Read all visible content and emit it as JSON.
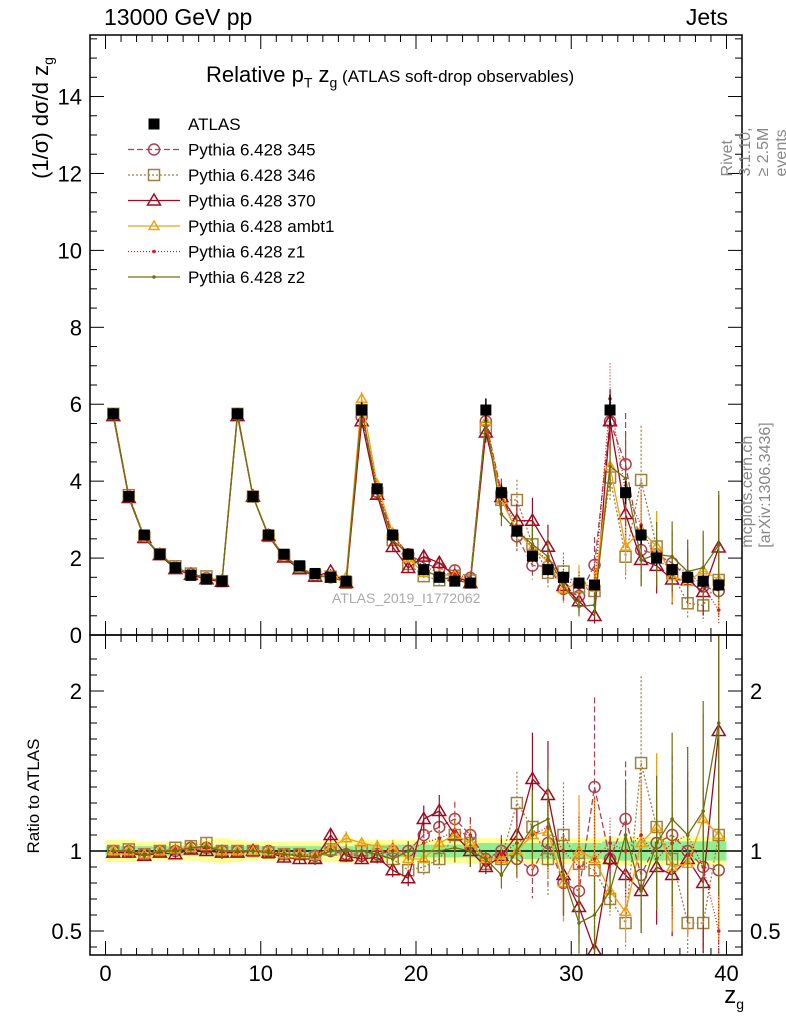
{
  "header": {
    "energy_label": "13000 GeV pp",
    "process_label": "Jets"
  },
  "title": {
    "prefix": "Relative p",
    "sub": "T",
    "mid": " z",
    "sub2": "g",
    "suffix": " (ATLAS soft-drop observables)"
  },
  "axes": {
    "ylabel_main": "(1/σ) dσ/d z",
    "ylabel_main_sub": "g",
    "ylabel_ratio": "Ratio to ATLAS",
    "xlabel": "z",
    "xlabel_sub": "g"
  },
  "side_labels": {
    "rivet": "Rivet 3.1.10, ≥ 2.5M events",
    "mcplots": "mcplots.cern.ch [arXiv:1306.3436]"
  },
  "analysis_label": "ATLAS_2019_I1772062",
  "colors": {
    "ATLAS": "#000000",
    "p345": "#b04050",
    "p346": "#a08040",
    "p370": "#9e0b20",
    "ambt1": "#f0a010",
    "z1": "#d02020",
    "z2": "#707010",
    "band_inner": "#90ee90",
    "band_outer": "#ffff99"
  },
  "chart_data": {
    "type": "scatter",
    "x_bins": [
      0.5,
      1.5,
      2.5,
      3.5,
      4.5,
      5.5,
      6.5,
      7.5,
      8.5,
      9.5,
      10.5,
      11.5,
      12.5,
      13.5,
      14.5,
      15.5,
      16.5,
      17.5,
      18.5,
      19.5,
      20.5,
      21.5,
      22.5,
      23.5,
      24.5,
      25.5,
      26.5,
      27.5,
      28.5,
      29.5,
      30.5,
      31.5,
      32.5,
      33.5,
      34.5,
      35.5,
      36.5,
      37.5,
      38.5,
      39.5
    ],
    "xlim": [
      -1,
      41
    ],
    "main": {
      "ylim": [
        0,
        15.6
      ],
      "yticks": [
        0,
        2,
        4,
        6,
        8,
        10,
        12,
        14
      ]
    },
    "ratio": {
      "ylim": [
        0.35,
        2.35
      ],
      "yticks": [
        0.5,
        1,
        2
      ],
      "ytick_labels": [
        "0.5",
        "1",
        "2"
      ]
    },
    "xticks": [
      0,
      10,
      20,
      30,
      40
    ],
    "legend": [
      "ATLAS",
      "Pythia 6.428 345",
      "Pythia 6.428 346",
      "Pythia 6.428 370",
      "Pythia 6.428 ambt1",
      "Pythia 6.428 z1",
      "Pythia 6.428 z2"
    ],
    "atlas": [
      5.75,
      3.6,
      2.6,
      2.1,
      1.75,
      1.55,
      1.45,
      1.4,
      5.75,
      3.6,
      2.6,
      2.1,
      1.8,
      1.6,
      1.5,
      1.4,
      5.85,
      3.8,
      2.6,
      2.1,
      1.7,
      1.5,
      1.4,
      1.35,
      5.85,
      3.7,
      2.7,
      2.05,
      1.7,
      1.5,
      1.35,
      1.3,
      5.85,
      3.7,
      2.6,
      2.0,
      1.7,
      1.5,
      1.4,
      1.3
    ],
    "atlas_err": [
      0.15,
      0.1,
      0.08,
      0.06,
      0.05,
      0.05,
      0.05,
      0.05,
      0.15,
      0.1,
      0.08,
      0.06,
      0.06,
      0.05,
      0.05,
      0.05,
      0.2,
      0.15,
      0.1,
      0.08,
      0.08,
      0.07,
      0.07,
      0.07,
      0.3,
      0.2,
      0.15,
      0.12,
      0.1,
      0.1,
      0.1,
      0.1,
      0.4,
      0.3,
      0.25,
      0.2,
      0.15,
      0.15,
      0.15,
      0.15
    ],
    "band_inner_frac": [
      0.03,
      0.03,
      0.03,
      0.03,
      0.03,
      0.03,
      0.03,
      0.03,
      0.03,
      0.03,
      0.03,
      0.03,
      0.03,
      0.03,
      0.03,
      0.03,
      0.04,
      0.04,
      0.04,
      0.04,
      0.04,
      0.04,
      0.04,
      0.04,
      0.05,
      0.05,
      0.05,
      0.05,
      0.05,
      0.05,
      0.05,
      0.05,
      0.06,
      0.06,
      0.06,
      0.06,
      0.06,
      0.06,
      0.06,
      0.06
    ],
    "band_outer_frac": [
      0.07,
      0.07,
      0.06,
      0.06,
      0.06,
      0.06,
      0.07,
      0.08,
      0.07,
      0.06,
      0.06,
      0.06,
      0.06,
      0.06,
      0.07,
      0.08,
      0.07,
      0.07,
      0.07,
      0.07,
      0.07,
      0.07,
      0.08,
      0.08,
      0.08,
      0.08,
      0.08,
      0.08,
      0.08,
      0.08,
      0.08,
      0.08,
      0.09,
      0.09,
      0.09,
      0.09,
      0.09,
      0.09,
      0.09,
      0.09
    ],
    "series": [
      {
        "name": "Pythia 6.428 345",
        "key": "p345",
        "ratio": [
          1.0,
          1.0,
          0.98,
          1.0,
          1.0,
          1.02,
          1.02,
          1.0,
          1.0,
          1.0,
          1.0,
          0.98,
          0.98,
          0.97,
          1.0,
          0.98,
          0.97,
          0.98,
          1.0,
          1.0,
          1.1,
          1.15,
          1.2,
          1.1,
          0.95,
          1.0,
          0.95,
          0.88,
          1.05,
          0.8,
          0.75,
          1.4,
          0.95,
          1.2,
          0.85,
          1.05,
          1.1,
          1.0,
          0.9,
          0.88
        ],
        "err_frac": [
          0.02,
          0.02,
          0.02,
          0.02,
          0.03,
          0.03,
          0.03,
          0.04,
          0.02,
          0.02,
          0.03,
          0.03,
          0.03,
          0.04,
          0.04,
          0.04,
          0.03,
          0.04,
          0.05,
          0.06,
          0.07,
          0.08,
          0.09,
          0.1,
          0.05,
          0.1,
          0.15,
          0.2,
          0.25,
          0.3,
          0.35,
          0.4,
          0.15,
          0.3,
          0.35,
          0.4,
          0.45,
          0.5,
          0.55,
          0.6
        ]
      },
      {
        "name": "Pythia 6.428 346",
        "key": "p346",
        "ratio": [
          1.0,
          1.01,
          0.98,
          1.0,
          1.02,
          1.03,
          1.05,
          1.0,
          1.0,
          1.0,
          0.99,
          0.98,
          0.98,
          0.96,
          1.01,
          0.97,
          1.0,
          0.97,
          0.95,
          0.88,
          0.9,
          0.95,
          1.1,
          1.05,
          0.92,
          0.95,
          1.3,
          1.15,
          0.95,
          1.1,
          0.92,
          0.88,
          0.7,
          0.55,
          1.55,
          1.15,
          0.95,
          0.55,
          0.55,
          1.1
        ],
        "err_frac": [
          0.02,
          0.02,
          0.02,
          0.02,
          0.03,
          0.03,
          0.03,
          0.04,
          0.02,
          0.02,
          0.03,
          0.03,
          0.03,
          0.04,
          0.04,
          0.04,
          0.03,
          0.04,
          0.05,
          0.06,
          0.07,
          0.08,
          0.09,
          0.1,
          0.05,
          0.1,
          0.15,
          0.2,
          0.25,
          0.3,
          0.35,
          0.4,
          0.15,
          0.3,
          0.35,
          0.4,
          0.45,
          0.5,
          0.55,
          0.6
        ]
      },
      {
        "name": "Pythia 6.428 370",
        "key": "p370",
        "ratio": [
          0.99,
          0.99,
          0.97,
          0.99,
          0.98,
          1.01,
          1.0,
          0.99,
          0.99,
          1.0,
          0.99,
          0.96,
          0.95,
          0.95,
          1.1,
          0.97,
          0.95,
          0.96,
          0.88,
          0.83,
          1.2,
          1.25,
          1.1,
          1.0,
          0.9,
          0.97,
          1.1,
          1.45,
          1.35,
          0.85,
          0.65,
          0.38,
          0.95,
          0.85,
          0.75,
          0.9,
          0.85,
          0.95,
          0.8,
          1.75
        ],
        "err_frac": [
          0.02,
          0.02,
          0.02,
          0.02,
          0.03,
          0.03,
          0.03,
          0.04,
          0.02,
          0.02,
          0.03,
          0.03,
          0.03,
          0.04,
          0.04,
          0.04,
          0.03,
          0.04,
          0.05,
          0.06,
          0.07,
          0.08,
          0.09,
          0.1,
          0.05,
          0.1,
          0.15,
          0.2,
          0.25,
          0.3,
          0.35,
          0.4,
          0.15,
          0.3,
          0.35,
          0.4,
          0.45,
          0.5,
          0.55,
          0.6
        ]
      },
      {
        "name": "Pythia 6.428 ambt1",
        "key": "ambt1",
        "ratio": [
          1.0,
          1.0,
          0.98,
          1.0,
          1.01,
          1.02,
          1.03,
          1.0,
          1.0,
          1.0,
          1.0,
          0.98,
          0.98,
          0.97,
          1.02,
          1.08,
          1.05,
          1.03,
          1.02,
          0.95,
          0.95,
          1.05,
          1.1,
          1.05,
          0.95,
          0.95,
          1.0,
          1.1,
          1.12,
          0.8,
          1.0,
          0.95,
          0.75,
          0.62,
          1.05,
          1.15,
          0.9,
          0.92,
          1.2,
          1.1
        ],
        "err_frac": [
          0.02,
          0.02,
          0.02,
          0.02,
          0.03,
          0.03,
          0.03,
          0.04,
          0.02,
          0.02,
          0.03,
          0.03,
          0.03,
          0.04,
          0.04,
          0.04,
          0.03,
          0.04,
          0.05,
          0.06,
          0.07,
          0.08,
          0.09,
          0.1,
          0.05,
          0.1,
          0.15,
          0.2,
          0.25,
          0.3,
          0.35,
          0.4,
          0.15,
          0.3,
          0.35,
          0.4,
          0.45,
          0.5,
          0.55,
          0.6
        ]
      },
      {
        "name": "Pythia 6.428 z1",
        "key": "z1",
        "ratio": [
          1.0,
          1.0,
          0.98,
          1.0,
          1.01,
          1.02,
          1.02,
          1.0,
          1.0,
          1.0,
          1.0,
          0.98,
          0.98,
          0.97,
          1.01,
          1.0,
          1.0,
          1.0,
          1.0,
          1.0,
          1.05,
          1.08,
          1.12,
          1.1,
          0.95,
          0.98,
          1.05,
          1.1,
          1.15,
          1.0,
          0.9,
          0.95,
          1.05,
          1.0,
          1.1,
          0.95,
          1.05,
          1.1,
          0.9,
          0.5
        ],
        "err_frac": [
          0.02,
          0.02,
          0.02,
          0.02,
          0.03,
          0.03,
          0.03,
          0.04,
          0.02,
          0.02,
          0.03,
          0.03,
          0.03,
          0.04,
          0.04,
          0.04,
          0.03,
          0.04,
          0.05,
          0.06,
          0.07,
          0.08,
          0.09,
          0.1,
          0.05,
          0.1,
          0.15,
          0.2,
          0.25,
          0.3,
          0.35,
          0.4,
          0.15,
          0.3,
          0.35,
          0.4,
          0.45,
          0.5,
          0.55,
          0.6
        ]
      },
      {
        "name": "Pythia 6.428 z2",
        "key": "z2",
        "ratio": [
          1.0,
          1.0,
          0.97,
          1.0,
          1.0,
          1.02,
          1.03,
          1.0,
          1.0,
          1.0,
          0.99,
          0.98,
          0.97,
          0.96,
          1.0,
          1.0,
          1.0,
          0.98,
          0.95,
          1.0,
          1.0,
          1.0,
          1.02,
          1.0,
          0.95,
          0.85,
          1.0,
          1.15,
          1.2,
          0.85,
          0.55,
          0.6,
          0.75,
          1.1,
          0.75,
          1.05,
          1.2,
          1.1,
          1.25,
          1.8
        ],
        "err_frac": [
          0.02,
          0.02,
          0.02,
          0.02,
          0.03,
          0.03,
          0.03,
          0.04,
          0.02,
          0.02,
          0.03,
          0.03,
          0.03,
          0.04,
          0.04,
          0.04,
          0.03,
          0.04,
          0.05,
          0.06,
          0.07,
          0.08,
          0.09,
          0.1,
          0.05,
          0.1,
          0.15,
          0.2,
          0.25,
          0.3,
          0.35,
          0.4,
          0.15,
          0.3,
          0.35,
          0.4,
          0.45,
          0.5,
          0.55,
          0.6
        ]
      }
    ]
  }
}
